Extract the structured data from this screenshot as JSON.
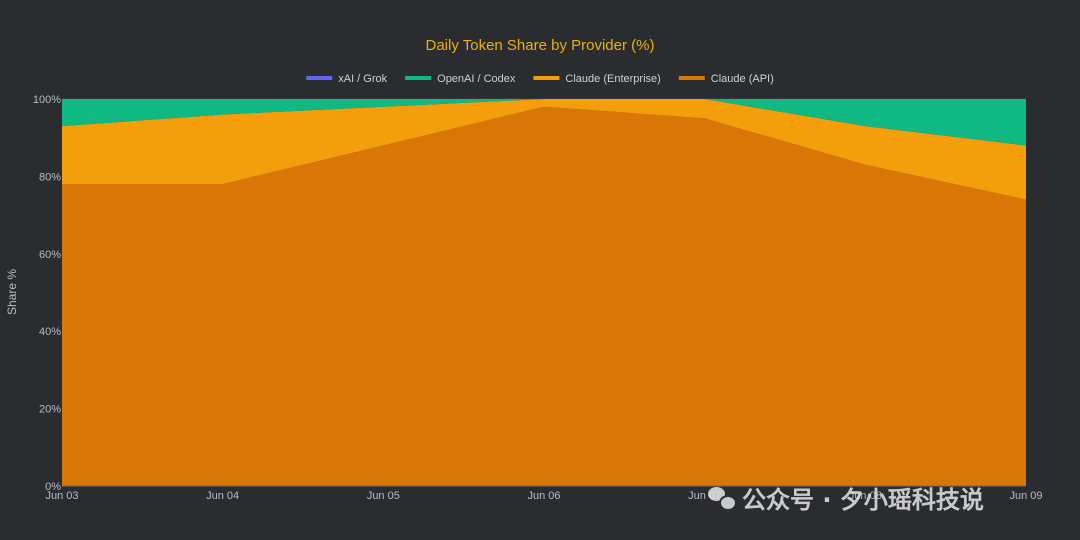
{
  "chart_data": {
    "type": "area",
    "stacked": true,
    "normalized": true,
    "title": "Daily Token Share by Provider (%)",
    "xlabel": "",
    "ylabel": "Share %",
    "x": [
      "Jun 03",
      "Jun 04",
      "Jun 05",
      "Jun 06",
      "Jun 07",
      "Jun 08",
      "Jun 09"
    ],
    "ylim": [
      0,
      100
    ],
    "yticks": [
      "0%",
      "20%",
      "40%",
      "60%",
      "80%",
      "100%"
    ],
    "legend_position": "top-center",
    "grid": true,
    "series": [
      {
        "name": "Claude (API)",
        "color": "#d97706",
        "values": [
          78,
          78,
          88,
          98,
          95,
          83,
          74
        ]
      },
      {
        "name": "Claude (Enterprise)",
        "color": "#f59e0b",
        "values": [
          15,
          18,
          10,
          2,
          5,
          10,
          14
        ]
      },
      {
        "name": "OpenAI / Codex",
        "color": "#10b981",
        "values": [
          7,
          4,
          2,
          0,
          0,
          7,
          12
        ]
      },
      {
        "name": "xAI / Grok",
        "color": "#6366f1",
        "values": [
          0,
          0,
          0,
          0,
          0,
          0,
          0
        ]
      }
    ],
    "legend_order": [
      "xAI / Grok",
      "OpenAI / Codex",
      "Claude (Enterprise)",
      "Claude (API)"
    ]
  },
  "watermark": {
    "text": "公众号 · 夕小瑶科技说",
    "icon": "wechat-icon"
  }
}
